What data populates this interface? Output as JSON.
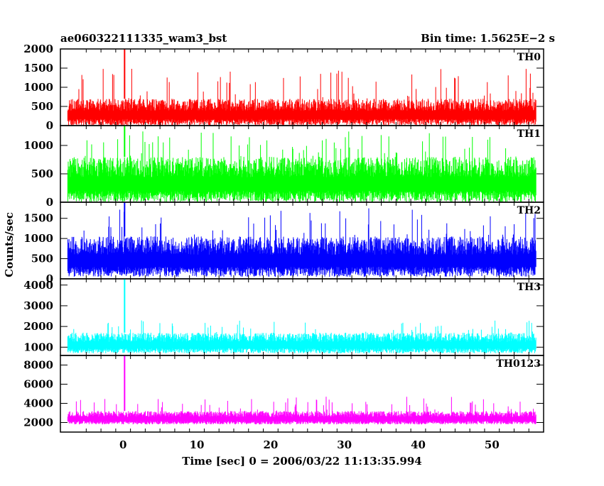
{
  "header": {
    "title": "ae060322111335_wam3_bst",
    "bin_time": "Bin time: 1.5625E−2 s"
  },
  "chart_data": {
    "type": "line",
    "xlabel": "Time [sec] 0 = 2006/03/22 11:13:35.994",
    "ylabel": "Counts/sec",
    "xlim": [
      -8.5,
      57
    ],
    "x_ticks": [
      0,
      10,
      20,
      30,
      40,
      50
    ],
    "x_data_range": [
      -7.5,
      56
    ],
    "burst_time": 0.2,
    "panels": [
      {
        "name": "TH0",
        "color": "#ff0000",
        "ylim": [
          0,
          2000
        ],
        "y_ticks": [
          0,
          500,
          1000,
          1500,
          2000
        ],
        "noise": {
          "low": 0,
          "base_high": 700,
          "spike_high": 1500
        },
        "peak": 2000
      },
      {
        "name": "TH1",
        "color": "#00ff00",
        "ylim": [
          0,
          1350
        ],
        "y_ticks": [
          0,
          500,
          1000
        ],
        "noise": {
          "low": 0,
          "base_high": 800,
          "spike_high": 1250
        },
        "peak": 1350
      },
      {
        "name": "TH2",
        "color": "#0000ff",
        "ylim": [
          0,
          1900
        ],
        "y_ticks": [
          0,
          500,
          1000,
          1500
        ],
        "noise": {
          "low": 50,
          "base_high": 1050,
          "spike_high": 1750
        },
        "peak": 1900
      },
      {
        "name": "TH3",
        "color": "#00ffff",
        "ylim": [
          600,
          4300
        ],
        "y_ticks": [
          1000,
          2000,
          3000,
          4000
        ],
        "noise": {
          "low": 700,
          "base_high": 1700,
          "spike_high": 2300
        },
        "peak": 4300
      },
      {
        "name": "TH0123",
        "color": "#ff00ff",
        "ylim": [
          1000,
          9000
        ],
        "y_ticks": [
          2000,
          4000,
          6000,
          8000
        ],
        "noise": {
          "low": 1800,
          "base_high": 3200,
          "spike_high": 4700
        },
        "peak": 9000
      }
    ]
  }
}
